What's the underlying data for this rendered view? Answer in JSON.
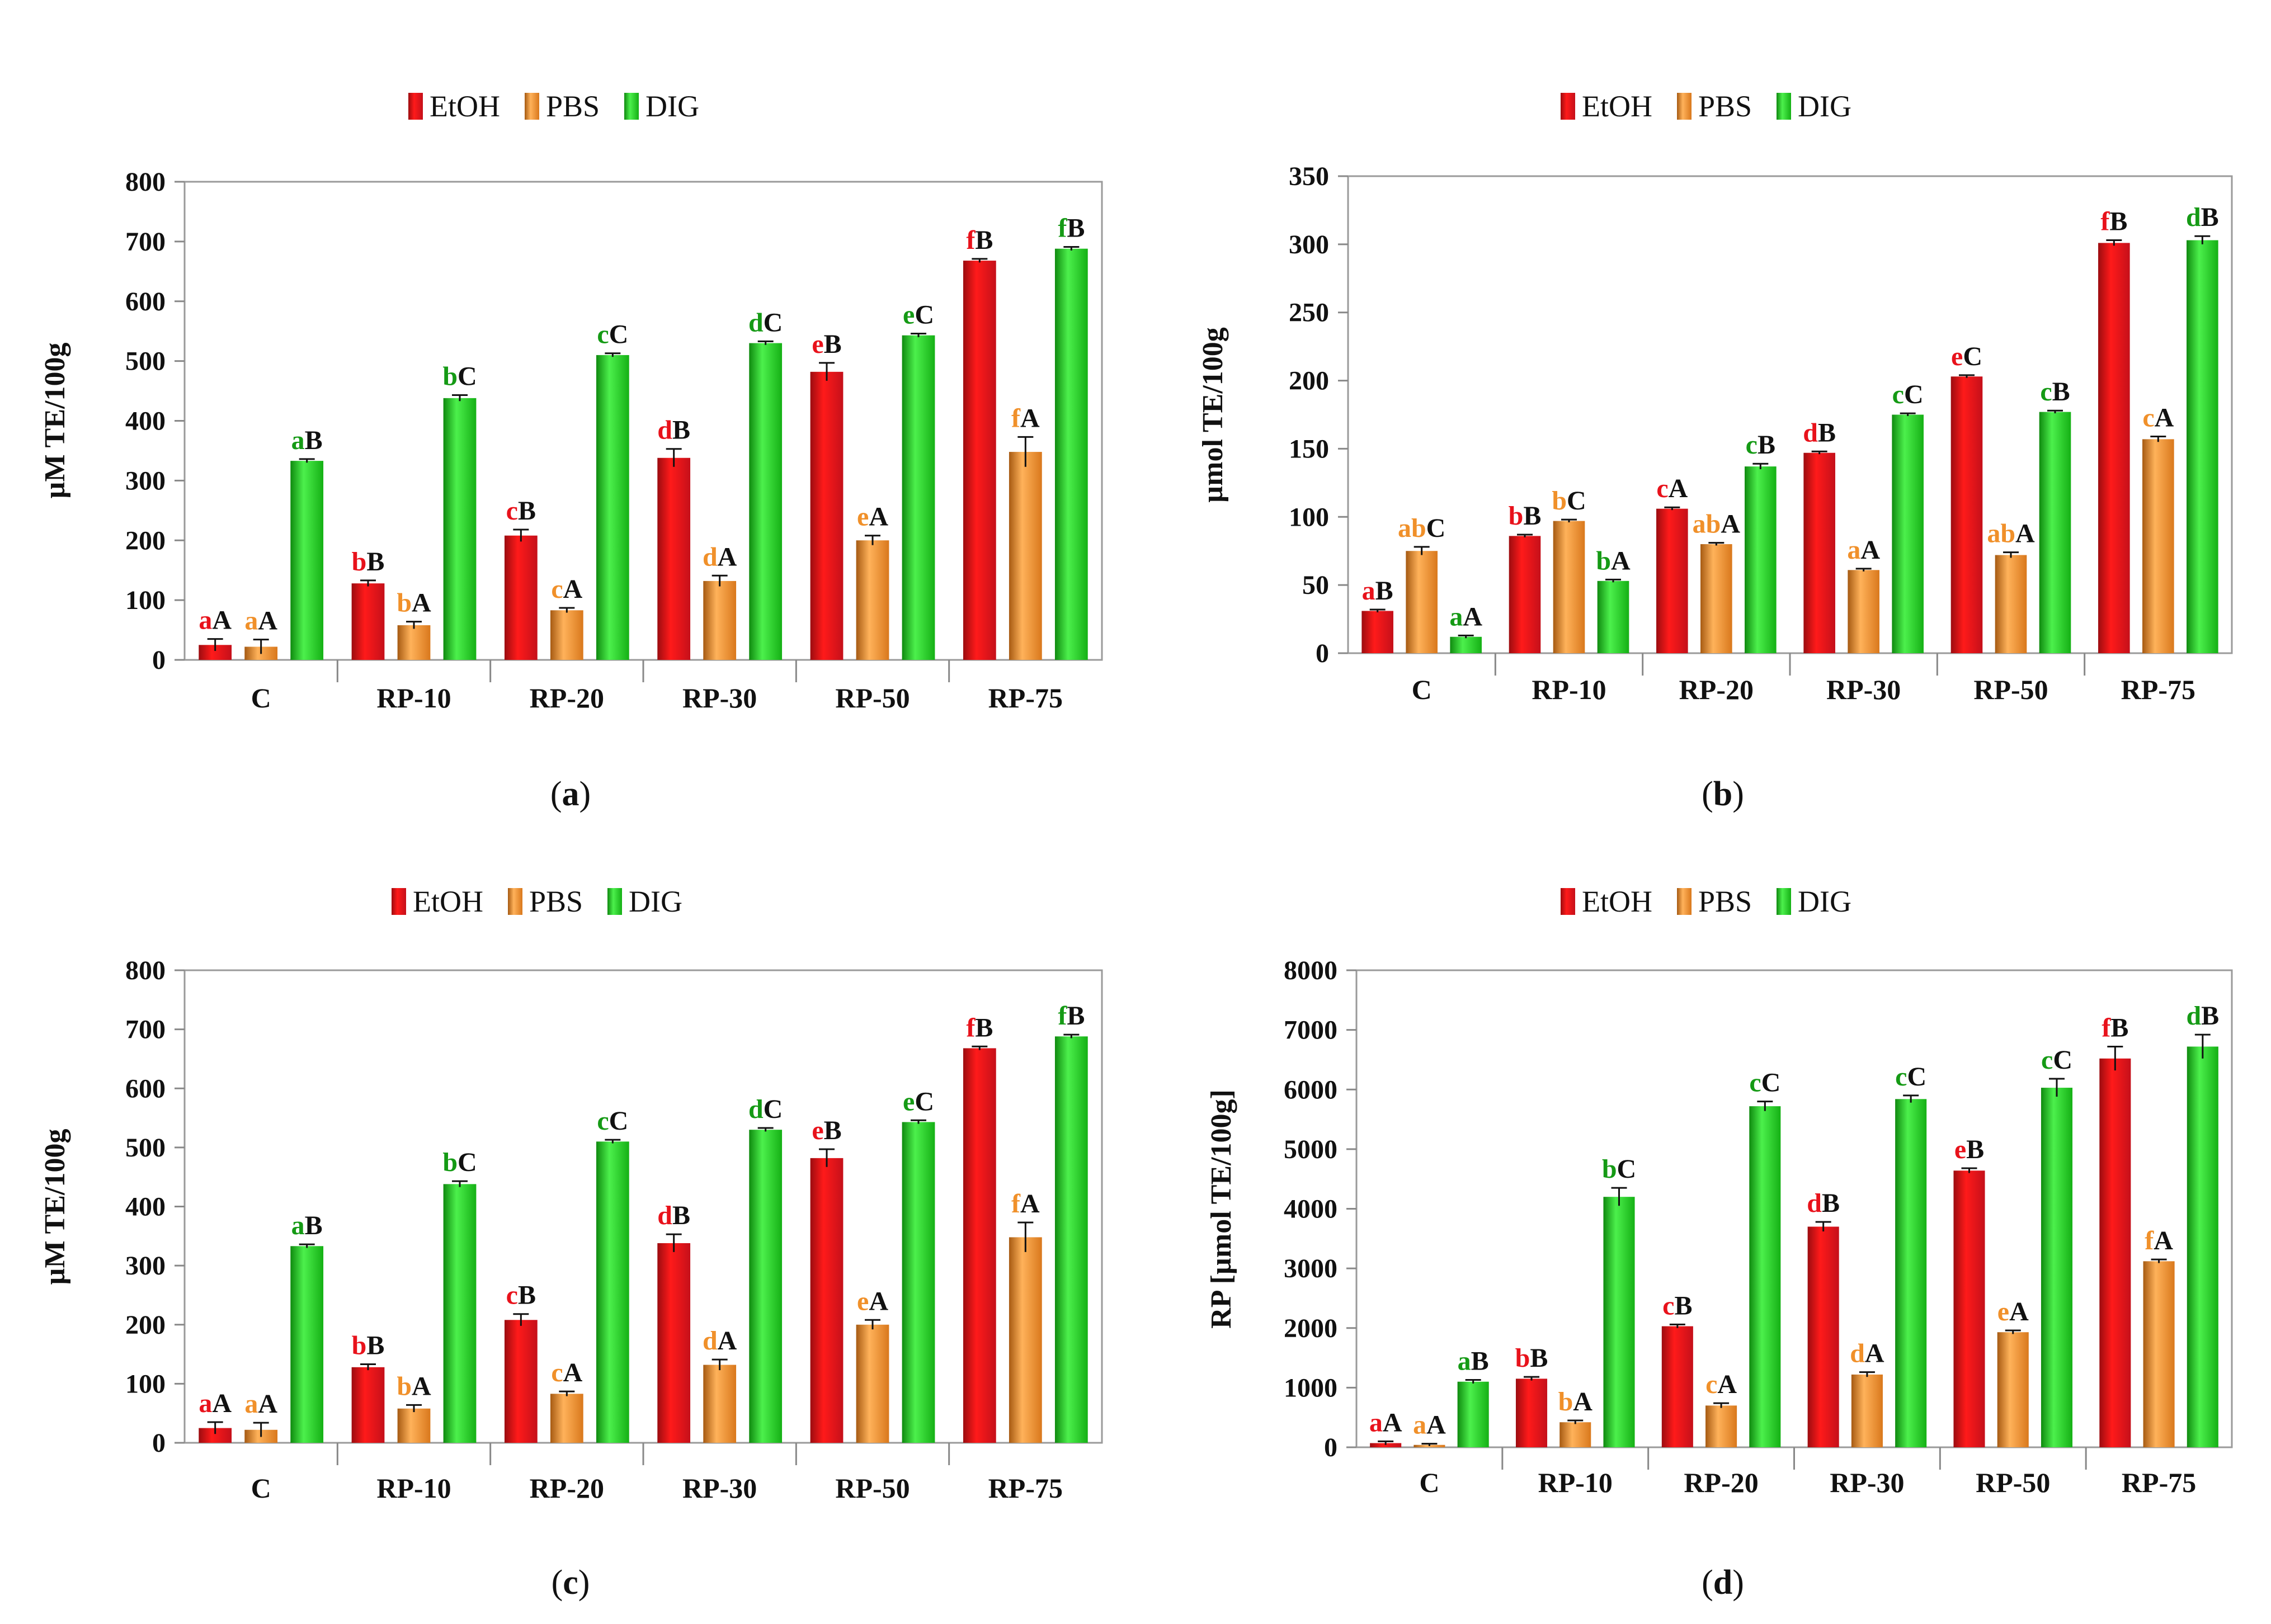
{
  "series": [
    {
      "name": "EtOH",
      "color": "#e8121b"
    },
    {
      "name": "PBS",
      "color": "#f0902a"
    },
    {
      "name": "DIG",
      "color": "#1ec51e"
    }
  ],
  "letter_colors": [
    "#e8121b",
    "#f0902a",
    "#159a15"
  ],
  "chart_data": [
    {
      "type": "bar",
      "panel": "(a)",
      "panel_letter": "a",
      "ylabel": "µM TE/100g",
      "ylim": [
        0,
        800
      ],
      "yticks": [
        "0",
        "100",
        "200",
        "300",
        "400",
        "500",
        "600",
        "700",
        "800"
      ],
      "categories": [
        "C",
        "RP-10",
        "RP-20",
        "RP-30",
        "RP-50",
        "RP-75"
      ],
      "series": [
        {
          "name": "EtOH",
          "values": [
            25,
            128,
            208,
            338,
            482,
            668
          ],
          "errors": [
            10,
            5,
            10,
            15,
            15,
            3
          ]
        },
        {
          "name": "PBS",
          "values": [
            22,
            58,
            83,
            132,
            200,
            348
          ],
          "errors": [
            12,
            6,
            4,
            9,
            8,
            25
          ]
        },
        {
          "name": "DIG",
          "values": [
            333,
            438,
            510,
            530,
            543,
            688
          ],
          "errors": [
            3,
            5,
            3,
            3,
            3,
            3
          ]
        }
      ],
      "labels": [
        [
          [
            "a",
            "A"
          ],
          [
            "a",
            "A"
          ],
          [
            "a",
            "B"
          ]
        ],
        [
          [
            "b",
            "B"
          ],
          [
            "b",
            "A"
          ],
          [
            "b",
            "C"
          ]
        ],
        [
          [
            "c",
            "B"
          ],
          [
            "c",
            "A"
          ],
          [
            "c",
            "C"
          ]
        ],
        [
          [
            "d",
            "B"
          ],
          [
            "d",
            "A"
          ],
          [
            "d",
            "C"
          ]
        ],
        [
          [
            "e",
            "B"
          ],
          [
            "e",
            "A"
          ],
          [
            "e",
            "C"
          ]
        ],
        [
          [
            "f",
            "B"
          ],
          [
            "f",
            "A"
          ],
          [
            "f",
            "B"
          ]
        ]
      ]
    },
    {
      "type": "bar",
      "panel": "(b)",
      "panel_letter": "b",
      "ylabel": "µmol TE/100g",
      "ylim": [
        0,
        350
      ],
      "yticks": [
        "0",
        "50",
        "100",
        "150",
        "200",
        "250",
        "300",
        "350"
      ],
      "categories": [
        "C",
        "RP-10",
        "RP-20",
        "RP-30",
        "RP-50",
        "RP-75"
      ],
      "series": [
        {
          "name": "EtOH",
          "values": [
            31,
            86,
            106,
            147,
            203,
            301
          ],
          "errors": [
            1,
            1,
            1,
            1,
            1,
            2
          ]
        },
        {
          "name": "PBS",
          "values": [
            75,
            97,
            80,
            61,
            72,
            157
          ],
          "errors": [
            3,
            1,
            1,
            1,
            2,
            2
          ]
        },
        {
          "name": "DIG",
          "values": [
            12,
            53,
            137,
            175,
            177,
            303
          ],
          "errors": [
            1,
            1,
            2,
            1,
            1,
            3
          ]
        }
      ],
      "labels": [
        [
          [
            "a",
            "B"
          ],
          [
            "ab",
            "C"
          ],
          [
            "a",
            "A"
          ]
        ],
        [
          [
            "b",
            "B"
          ],
          [
            "b",
            "C"
          ],
          [
            "b",
            "A"
          ]
        ],
        [
          [
            "c",
            "A"
          ],
          [
            "ab",
            "A"
          ],
          [
            "c",
            "B"
          ]
        ],
        [
          [
            "d",
            "B"
          ],
          [
            "a",
            "A"
          ],
          [
            "c",
            "C"
          ]
        ],
        [
          [
            "e",
            "C"
          ],
          [
            "ab",
            "A"
          ],
          [
            "c",
            "B"
          ]
        ],
        [
          [
            "f",
            "B"
          ],
          [
            "c",
            "A"
          ],
          [
            "d",
            "B"
          ]
        ]
      ]
    },
    {
      "type": "bar",
      "panel": "(c)",
      "panel_letter": "c",
      "ylabel": "µM TE/100g",
      "ylim": [
        0,
        800
      ],
      "yticks": [
        "0",
        "100",
        "200",
        "300",
        "400",
        "500",
        "600",
        "700",
        "800"
      ],
      "categories": [
        "C",
        "RP-10",
        "RP-20",
        "RP-30",
        "RP-50",
        "RP-75"
      ],
      "series": [
        {
          "name": "EtOH",
          "values": [
            25,
            128,
            208,
            338,
            482,
            668
          ],
          "errors": [
            10,
            5,
            10,
            15,
            15,
            3
          ]
        },
        {
          "name": "PBS",
          "values": [
            22,
            58,
            83,
            132,
            200,
            348
          ],
          "errors": [
            12,
            6,
            4,
            9,
            8,
            25
          ]
        },
        {
          "name": "DIG",
          "values": [
            333,
            438,
            510,
            530,
            543,
            688
          ],
          "errors": [
            3,
            5,
            3,
            3,
            3,
            3
          ]
        }
      ],
      "labels": [
        [
          [
            "a",
            "A"
          ],
          [
            "a",
            "A"
          ],
          [
            "a",
            "B"
          ]
        ],
        [
          [
            "b",
            "B"
          ],
          [
            "b",
            "A"
          ],
          [
            "b",
            "C"
          ]
        ],
        [
          [
            "c",
            "B"
          ],
          [
            "c",
            "A"
          ],
          [
            "c",
            "C"
          ]
        ],
        [
          [
            "d",
            "B"
          ],
          [
            "d",
            "A"
          ],
          [
            "d",
            "C"
          ]
        ],
        [
          [
            "e",
            "B"
          ],
          [
            "e",
            "A"
          ],
          [
            "e",
            "C"
          ]
        ],
        [
          [
            "f",
            "B"
          ],
          [
            "f",
            "A"
          ],
          [
            "f",
            "B"
          ]
        ]
      ]
    },
    {
      "type": "bar",
      "panel": "(d)",
      "panel_letter": "d",
      "ylabel": "RP [µmol TE/100g]",
      "ylim": [
        0,
        8000
      ],
      "yticks": [
        "0",
        "1000",
        "2000",
        "3000",
        "4000",
        "5000",
        "6000",
        "7000",
        "8000"
      ],
      "categories": [
        "C",
        "RP-10",
        "RP-20",
        "RP-30",
        "RP-50",
        "RP-75"
      ],
      "series": [
        {
          "name": "EtOH",
          "values": [
            70,
            1150,
            2030,
            3700,
            4640,
            6520
          ],
          "errors": [
            30,
            30,
            30,
            80,
            40,
            200
          ]
        },
        {
          "name": "PBS",
          "values": [
            40,
            420,
            700,
            1220,
            1930,
            3120
          ],
          "errors": [
            20,
            30,
            40,
            40,
            30,
            30
          ]
        },
        {
          "name": "DIG",
          "values": [
            1100,
            4200,
            5720,
            5840,
            6030,
            6720
          ],
          "errors": [
            30,
            150,
            80,
            60,
            150,
            200
          ]
        }
      ],
      "labels": [
        [
          [
            "a",
            "A"
          ],
          [
            "a",
            "A"
          ],
          [
            "a",
            "B"
          ]
        ],
        [
          [
            "b",
            "B"
          ],
          [
            "b",
            "A"
          ],
          [
            "b",
            "C"
          ]
        ],
        [
          [
            "c",
            "B"
          ],
          [
            "c",
            "A"
          ],
          [
            "c",
            "C"
          ]
        ],
        [
          [
            "d",
            "B"
          ],
          [
            "d",
            "A"
          ],
          [
            "c",
            "C"
          ]
        ],
        [
          [
            "e",
            "B"
          ],
          [
            "e",
            "A"
          ],
          [
            "c",
            "C"
          ]
        ],
        [
          [
            "f",
            "B"
          ],
          [
            "f",
            "A"
          ],
          [
            "d",
            "B"
          ]
        ]
      ]
    }
  ]
}
